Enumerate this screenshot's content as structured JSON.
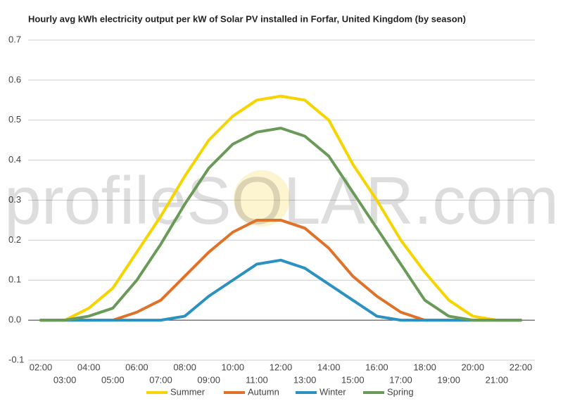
{
  "chart_data": {
    "type": "line",
    "title": "Hourly avg kWh electricity output per kW of Solar PV installed in Forfar, United Kingdom (by season)",
    "watermark": "profileSOLAR.com",
    "categories": [
      "02:00",
      "03:00",
      "04:00",
      "05:00",
      "06:00",
      "07:00",
      "08:00",
      "09:00",
      "10:00",
      "11:00",
      "12:00",
      "13:00",
      "14:00",
      "15:00",
      "16:00",
      "17:00",
      "18:00",
      "19:00",
      "20:00",
      "21:00",
      "22:00"
    ],
    "series": [
      {
        "name": "Summer",
        "color": "#f5d400",
        "values": [
          0,
          0,
          0.03,
          0.08,
          0.17,
          0.26,
          0.36,
          0.45,
          0.51,
          0.55,
          0.56,
          0.55,
          0.5,
          0.39,
          0.3,
          0.2,
          0.12,
          0.05,
          0.01,
          0,
          0
        ]
      },
      {
        "name": "Autumn",
        "color": "#e07128",
        "values": [
          0,
          0,
          0,
          0,
          0.02,
          0.05,
          0.11,
          0.17,
          0.22,
          0.25,
          0.25,
          0.23,
          0.18,
          0.11,
          0.06,
          0.02,
          0,
          0,
          0,
          0,
          0
        ]
      },
      {
        "name": "Winter",
        "color": "#2b91c0",
        "values": [
          0,
          0,
          0,
          0,
          0,
          0,
          0.01,
          0.06,
          0.1,
          0.14,
          0.15,
          0.13,
          0.09,
          0.05,
          0.01,
          0,
          0,
          0,
          0,
          0,
          0
        ]
      },
      {
        "name": "Spring",
        "color": "#6a9a58",
        "values": [
          0,
          0,
          0.01,
          0.03,
          0.1,
          0.19,
          0.29,
          0.38,
          0.44,
          0.47,
          0.48,
          0.46,
          0.41,
          0.32,
          0.23,
          0.14,
          0.05,
          0.01,
          0,
          0,
          0
        ]
      }
    ],
    "ylim": [
      -0.1,
      0.7
    ],
    "yticks": [
      -0.1,
      {
        "value": 0,
        "label": "0.0"
      },
      0.1,
      0.2,
      0.3,
      0.4,
      0.5,
      0.6,
      0.7
    ],
    "grid": true
  }
}
